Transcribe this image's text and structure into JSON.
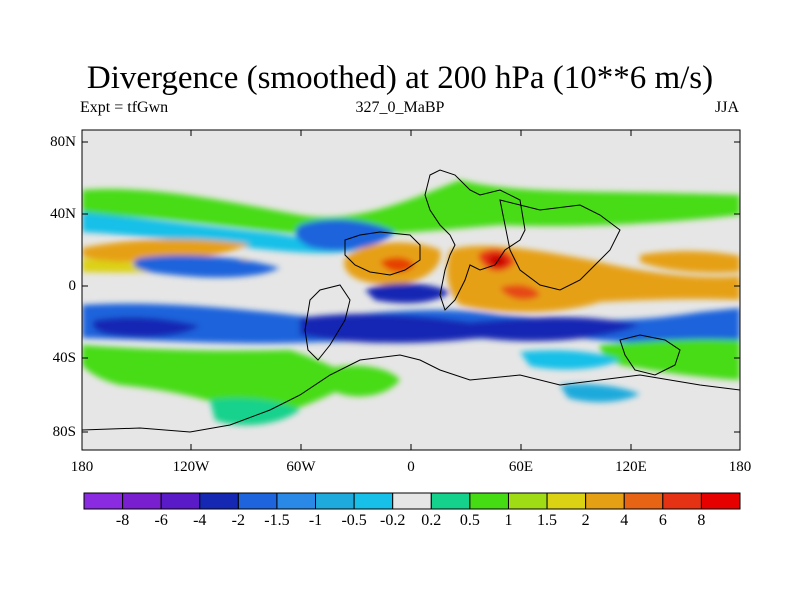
{
  "plot": {
    "title": "Divergence (smoothed) at 200 hPa (10**6 m/s)",
    "left_label": "Expt = tfGwn",
    "center_label": "327_0_MaBP",
    "right_label": "JJA",
    "background_color": "#e6e6e6"
  },
  "map": {
    "lat_labels": [
      "80N",
      "40N",
      "0",
      "40S",
      "80S"
    ],
    "lon_labels": [
      "180",
      "120W",
      "60W",
      "0",
      "60E",
      "120E",
      "180"
    ]
  },
  "colorbar": {
    "labels": [
      "-8",
      "-6",
      "-4",
      "-2",
      "-1.5",
      "-1",
      "-0.5",
      "-0.2",
      "0.2",
      "0.5",
      "1",
      "1.5",
      "2",
      "4",
      "6",
      "8"
    ],
    "colors": [
      "#8a2be2",
      "#7a1fd0",
      "#5a1ac8",
      "#1428b4",
      "#1e64dc",
      "#2a88e6",
      "#1eaadc",
      "#16c0e8",
      "#e6e6e6",
      "#14d28c",
      "#46dc14",
      "#a0dc14",
      "#dcd214",
      "#e6a014",
      "#e66414",
      "#e63214",
      "#e60000"
    ]
  }
}
